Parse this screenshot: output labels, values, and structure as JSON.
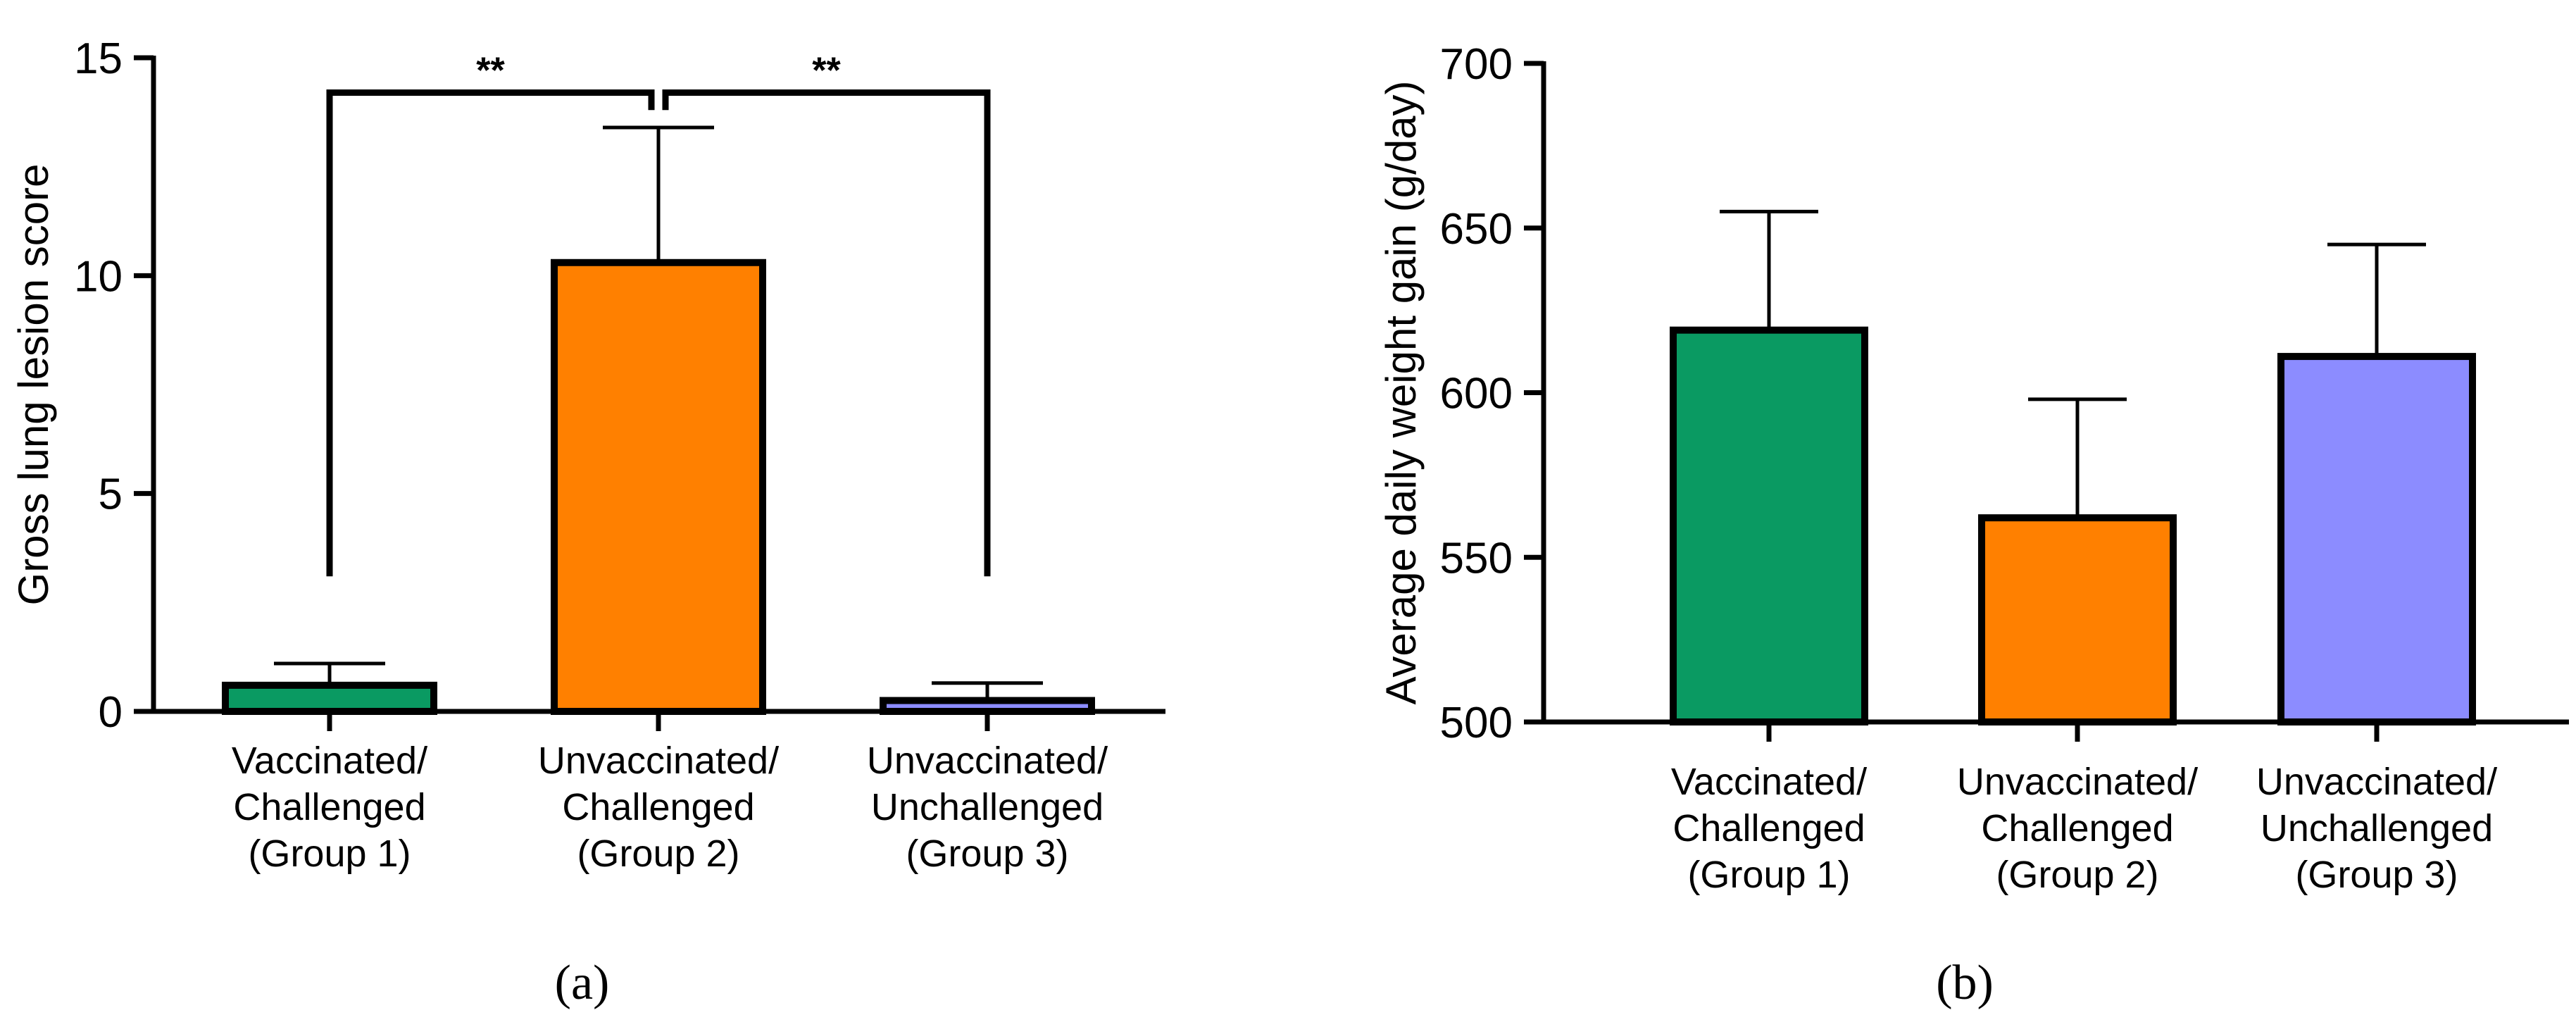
{
  "chart_data": [
    {
      "type": "bar",
      "panel_label": "(a)",
      "ylabel": "Gross lung lesion score",
      "ylim": [
        0,
        15
      ],
      "yticks": [
        0,
        5,
        10,
        15
      ],
      "ytick_labels": [
        "0",
        "5",
        "10",
        "15"
      ],
      "categories": [
        [
          "Vaccinated/",
          "Challenged",
          "(Group 1)"
        ],
        [
          "Unvaccinated/",
          "Challenged",
          "(Group 2)"
        ],
        [
          "Unvaccinated/",
          "Unchallenged",
          "(Group 3)"
        ]
      ],
      "values": [
        0.6,
        10.3,
        0.25
      ],
      "errors": [
        0.5,
        3.1,
        0.4
      ],
      "colors": [
        "#0a9a62",
        "#ff8000",
        "#8c8cff"
      ],
      "significance": [
        {
          "from": 0,
          "to": 1,
          "label": "**",
          "bracket_y": 14.2,
          "left_bottom": 3.1,
          "right_bottom": 13.8
        },
        {
          "from": 1,
          "to": 2,
          "label": "**",
          "bracket_y": 14.2,
          "left_bottom": 13.8,
          "right_bottom": 3.1
        }
      ]
    },
    {
      "type": "bar",
      "panel_label": "(b)",
      "ylabel": "Average daily weight gain (g/day)",
      "ylim": [
        500,
        700
      ],
      "yticks": [
        500,
        550,
        600,
        650,
        700
      ],
      "ytick_labels": [
        "500",
        "550",
        "600",
        "650",
        "700"
      ],
      "categories": [
        [
          "Vaccinated/",
          "Challenged",
          "(Group 1)"
        ],
        [
          "Unvaccinated/",
          "Challenged",
          "(Group 2)"
        ],
        [
          "Unvaccinated/",
          "Unchallenged",
          "(Group 3)"
        ]
      ],
      "values": [
        619,
        562,
        611
      ],
      "errors": [
        36,
        36,
        34
      ],
      "colors": [
        "#0a9a62",
        "#ff8000",
        "#8c8cff"
      ],
      "significance": []
    }
  ]
}
